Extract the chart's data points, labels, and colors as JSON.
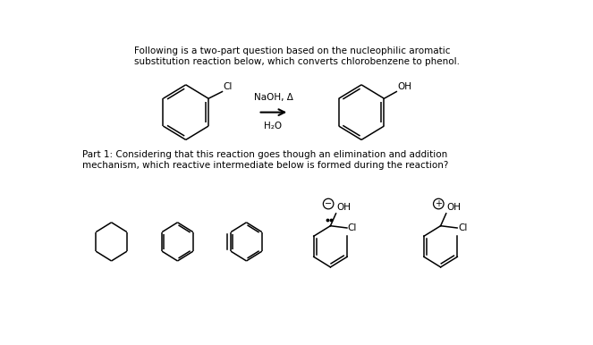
{
  "title_text": "Following is a two-part question based on the nucleophilic aromatic\nsubstitution reaction below, which converts chlorobenzene to phenol.",
  "part1_text": "Part 1: Considering that this reaction goes though an elimination and addition\nmechanism, which reactive intermediate below is formed during the reaction?",
  "reaction_conditions_line1": "NaOH, Δ",
  "reaction_conditions_line2": "H₂O",
  "bg_color": "#ffffff",
  "line_color": "#000000",
  "font_size_title": 7.5,
  "font_size_part": 7.5,
  "font_size_label": 7.5
}
